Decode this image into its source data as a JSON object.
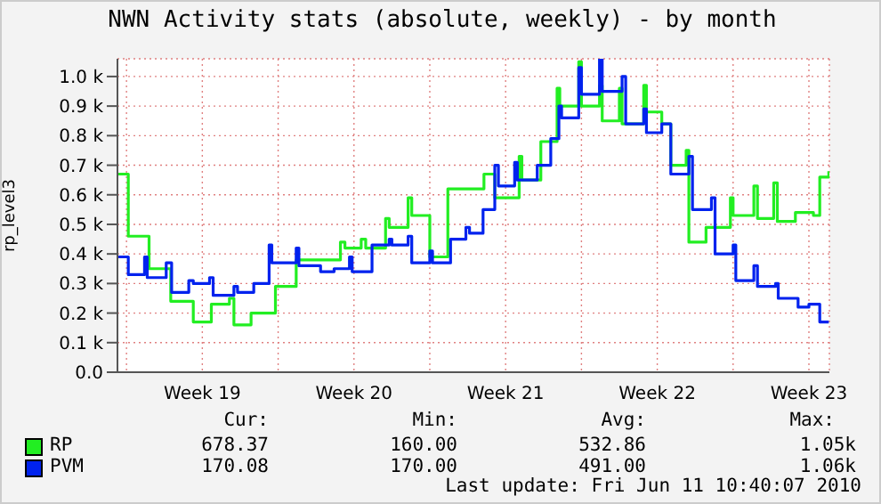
{
  "chart_data": {
    "type": "step",
    "title": "NWN Activity stats (absolute, weekly) - by month",
    "ylabel": "rp_level3",
    "xlim": [
      "2010-05-09T14:00",
      "2010-06-11T10:40"
    ],
    "xticks": [
      {
        "value": "2010-05-10T00:00",
        "label": null
      },
      {
        "value": "2010-05-13T12:00",
        "label": "Week 19"
      },
      {
        "value": "2010-05-17T00:00",
        "label": null
      },
      {
        "value": "2010-05-20T12:00",
        "label": "Week 20"
      },
      {
        "value": "2010-05-24T00:00",
        "label": null
      },
      {
        "value": "2010-05-27T12:00",
        "label": "Week 21"
      },
      {
        "value": "2010-05-31T00:00",
        "label": null
      },
      {
        "value": "2010-06-03T12:00",
        "label": "Week 22"
      },
      {
        "value": "2010-06-07T00:00",
        "label": null
      },
      {
        "value": "2010-06-10T12:00",
        "label": "Week 23"
      }
    ],
    "ylim": [
      0,
      1.06
    ],
    "yticks": [
      {
        "value": 0,
        "label": "0.0"
      },
      {
        "value": 0.1,
        "label": "0.1 k"
      },
      {
        "value": 0.2,
        "label": "0.2 k"
      },
      {
        "value": 0.3,
        "label": "0.3 k"
      },
      {
        "value": 0.4,
        "label": "0.4 k"
      },
      {
        "value": 0.5,
        "label": "0.5 k"
      },
      {
        "value": 0.6,
        "label": "0.6 k"
      },
      {
        "value": 0.7,
        "label": "0.7 k"
      },
      {
        "value": 0.8,
        "label": "0.8 k"
      },
      {
        "value": 0.9,
        "label": "0.9 k"
      },
      {
        "value": 1.0,
        "label": "1.0 k"
      }
    ],
    "grid": true,
    "legend": "bottom",
    "series": [
      {
        "name": "RP",
        "color": "#22ee22",
        "x": [
          "2010-05-09T14:00",
          "2010-05-10T02:00",
          "2010-05-11T01:00",
          "2010-05-12T01:00",
          "2010-05-13T02:00",
          "2010-05-13T22:00",
          "2010-05-14T18:00",
          "2010-05-14T23:00",
          "2010-05-15T18:00",
          "2010-05-16T21:00",
          "2010-05-17T20:00",
          "2010-05-19T21:00",
          "2010-05-20T02:00",
          "2010-05-20T20:00",
          "2010-05-21T01:00",
          "2010-05-21T23:00",
          "2010-05-22T03:00",
          "2010-05-23T00:00",
          "2010-05-23T04:00",
          "2010-05-24T00:00",
          "2010-05-24T20:00",
          "2010-05-26T12:00",
          "2010-05-27T00:00",
          "2010-05-28T03:00",
          "2010-05-28T06:00",
          "2010-05-29T03:00",
          "2010-05-29T21:00",
          "2010-05-30T00:00",
          "2010-05-30T21:00",
          "2010-05-31T00:00",
          "2010-05-31T20:00",
          "2010-05-31T23:00",
          "2010-06-01T18:00",
          "2010-06-01T21:00",
          "2010-06-02T21:00",
          "2010-06-03T00:00",
          "2010-06-03T17:00",
          "2010-06-04T03:00",
          "2010-06-04T20:00",
          "2010-06-04T23:00",
          "2010-06-05T18:00",
          "2010-06-06T21:00",
          "2010-06-07T00:00",
          "2010-06-07T23:00",
          "2010-06-08T03:00",
          "2010-06-08T21:00",
          "2010-06-09T01:00",
          "2010-06-09T21:00",
          "2010-06-10T17:00",
          "2010-06-11T00:00",
          "2010-06-11T10:00"
        ],
        "values": [
          0.67,
          0.46,
          0.35,
          0.24,
          0.17,
          0.23,
          0.25,
          0.16,
          0.2,
          0.29,
          0.38,
          0.44,
          0.42,
          0.45,
          0.42,
          0.52,
          0.49,
          0.59,
          0.53,
          0.39,
          0.62,
          0.67,
          0.59,
          0.73,
          0.65,
          0.78,
          0.96,
          0.9,
          1.05,
          0.9,
          0.97,
          0.85,
          0.96,
          0.84,
          0.97,
          0.88,
          0.84,
          0.7,
          0.75,
          0.44,
          0.49,
          0.59,
          0.53,
          0.63,
          0.52,
          0.64,
          0.51,
          0.54,
          0.53,
          0.66,
          0.68
        ]
      },
      {
        "name": "PVM",
        "color": "#0022ee",
        "x": [
          "2010-05-09T14:00",
          "2010-05-10T02:00",
          "2010-05-10T20:00",
          "2010-05-10T23:00",
          "2010-05-11T20:00",
          "2010-05-12T02:00",
          "2010-05-12T21:00",
          "2010-05-13T02:00",
          "2010-05-13T20:00",
          "2010-05-14T00:00",
          "2010-05-14T23:00",
          "2010-05-15T03:00",
          "2010-05-15T21:00",
          "2010-05-16T14:00",
          "2010-05-16T17:00",
          "2010-05-17T20:00",
          "2010-05-17T23:00",
          "2010-05-18T23:00",
          "2010-05-19T14:00",
          "2010-05-20T07:00",
          "2010-05-20T10:00",
          "2010-05-21T08:00",
          "2010-05-22T03:00",
          "2010-05-22T06:00",
          "2010-05-23T00:00",
          "2010-05-23T04:00",
          "2010-05-24T00:00",
          "2010-05-24T03:00",
          "2010-05-24T23:00",
          "2010-05-25T16:00",
          "2010-05-25T20:00",
          "2010-05-26T11:00",
          "2010-05-27T00:00",
          "2010-05-27T04:00",
          "2010-05-27T22:00",
          "2010-05-28T01:00",
          "2010-05-28T23:00",
          "2010-05-29T14:00",
          "2010-05-29T23:00",
          "2010-05-30T02:00",
          "2010-05-30T21:00",
          "2010-05-31T00:00",
          "2010-05-31T20:00",
          "2010-05-31T23:00",
          "2010-06-01T21:00",
          "2010-06-02T01:00",
          "2010-06-02T21:00",
          "2010-06-03T00:00",
          "2010-06-03T17:00",
          "2010-06-04T03:00",
          "2010-06-04T23:00",
          "2010-06-05T03:00",
          "2010-06-06T00:00",
          "2010-06-06T04:00",
          "2010-06-07T00:00",
          "2010-06-07T03:00",
          "2010-06-07T23:00",
          "2010-06-08T03:00",
          "2010-06-08T23:00",
          "2010-06-09T02:00",
          "2010-06-10T00:00",
          "2010-06-10T12:00",
          "2010-06-11T00:00",
          "2010-06-11T10:00"
        ],
        "values": [
          0.39,
          0.33,
          0.39,
          0.32,
          0.37,
          0.27,
          0.31,
          0.3,
          0.32,
          0.26,
          0.29,
          0.27,
          0.3,
          0.43,
          0.37,
          0.42,
          0.36,
          0.34,
          0.35,
          0.39,
          0.34,
          0.43,
          0.45,
          0.43,
          0.46,
          0.37,
          0.41,
          0.37,
          0.45,
          0.49,
          0.47,
          0.55,
          0.7,
          0.63,
          0.71,
          0.65,
          0.7,
          0.79,
          0.9,
          0.86,
          1.03,
          0.94,
          1.06,
          0.95,
          1.0,
          0.84,
          0.89,
          0.81,
          0.84,
          0.67,
          0.73,
          0.55,
          0.59,
          0.4,
          0.43,
          0.31,
          0.36,
          0.29,
          0.3,
          0.25,
          0.22,
          0.23,
          0.17,
          0.17
        ]
      }
    ],
    "annotations": [
      "Cur:",
      "Min:",
      "Avg:",
      "Max:",
      "678.37",
      "160.00",
      "532.86",
      "1.05k",
      "170.08",
      "170.00",
      "491.00",
      "1.06k",
      "Last update: Fri Jun 11 10:40:07 2010"
    ]
  }
}
